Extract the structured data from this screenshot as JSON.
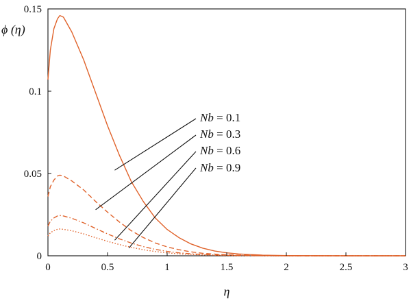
{
  "chart_data": {
    "type": "line",
    "title": "",
    "xlabel": "η",
    "ylabel": "ϕ (η)",
    "xlim": [
      0,
      3
    ],
    "ylim": [
      0,
      0.15
    ],
    "xticks": [
      0,
      0.5,
      1,
      1.5,
      2,
      2.5,
      3
    ],
    "xtick_labels": [
      "0",
      "0.5",
      "1",
      "1.5",
      "2",
      "2.5",
      "3"
    ],
    "yticks": [
      0,
      0.05,
      0.1,
      0.15
    ],
    "ytick_labels": [
      "0",
      "0.05",
      "0.1",
      "0.15"
    ],
    "grid": false,
    "line_color": "#e0622a",
    "series": [
      {
        "name": "Nb = 0.1",
        "dash": "solid",
        "points": [
          [
            0,
            0.107
          ],
          [
            0.02,
            0.125
          ],
          [
            0.05,
            0.138
          ],
          [
            0.08,
            0.144
          ],
          [
            0.1,
            0.146
          ],
          [
            0.13,
            0.145
          ],
          [
            0.2,
            0.136
          ],
          [
            0.3,
            0.119
          ],
          [
            0.4,
            0.099
          ],
          [
            0.5,
            0.079
          ],
          [
            0.6,
            0.061
          ],
          [
            0.7,
            0.045
          ],
          [
            0.8,
            0.033
          ],
          [
            0.9,
            0.023
          ],
          [
            1.0,
            0.016
          ],
          [
            1.1,
            0.011
          ],
          [
            1.2,
            0.0072
          ],
          [
            1.3,
            0.0046
          ],
          [
            1.4,
            0.0029
          ],
          [
            1.5,
            0.0018
          ],
          [
            1.6,
            0.0011
          ],
          [
            1.8,
            0.0004
          ],
          [
            2.0,
            0.0001
          ],
          [
            2.5,
            0
          ],
          [
            3.0,
            0
          ]
        ]
      },
      {
        "name": "Nb = 0.3",
        "dash": "dashed",
        "points": [
          [
            0,
            0.036
          ],
          [
            0.02,
            0.042
          ],
          [
            0.05,
            0.046
          ],
          [
            0.08,
            0.0485
          ],
          [
            0.1,
            0.049
          ],
          [
            0.13,
            0.0485
          ],
          [
            0.2,
            0.0455
          ],
          [
            0.3,
            0.04
          ],
          [
            0.4,
            0.033
          ],
          [
            0.5,
            0.0265
          ],
          [
            0.6,
            0.0205
          ],
          [
            0.7,
            0.0152
          ],
          [
            0.8,
            0.0111
          ],
          [
            0.9,
            0.0078
          ],
          [
            1.0,
            0.0054
          ],
          [
            1.1,
            0.0037
          ],
          [
            1.2,
            0.0024
          ],
          [
            1.3,
            0.0015
          ],
          [
            1.4,
            0.001
          ],
          [
            1.5,
            0.0006
          ],
          [
            1.6,
            0.0004
          ],
          [
            1.8,
            0.0001
          ],
          [
            2.0,
            0
          ],
          [
            2.5,
            0
          ],
          [
            3.0,
            0
          ]
        ]
      },
      {
        "name": "Nb = 0.6",
        "dash": "dashdot",
        "points": [
          [
            0,
            0.018
          ],
          [
            0.02,
            0.021
          ],
          [
            0.05,
            0.023
          ],
          [
            0.08,
            0.0242
          ],
          [
            0.1,
            0.0245
          ],
          [
            0.13,
            0.0242
          ],
          [
            0.2,
            0.0228
          ],
          [
            0.3,
            0.02
          ],
          [
            0.4,
            0.0166
          ],
          [
            0.5,
            0.0133
          ],
          [
            0.6,
            0.0103
          ],
          [
            0.7,
            0.0077
          ],
          [
            0.8,
            0.0056
          ],
          [
            0.9,
            0.0039
          ],
          [
            1.0,
            0.0027
          ],
          [
            1.1,
            0.0018
          ],
          [
            1.2,
            0.0012
          ],
          [
            1.3,
            0.0008
          ],
          [
            1.4,
            0.0005
          ],
          [
            1.5,
            0.0003
          ],
          [
            1.6,
            0.0002
          ],
          [
            1.8,
            0.0001
          ],
          [
            2.0,
            0
          ],
          [
            2.5,
            0
          ],
          [
            3.0,
            0
          ]
        ]
      },
      {
        "name": "Nb = 0.9",
        "dash": "dotted",
        "points": [
          [
            0,
            0.012
          ],
          [
            0.02,
            0.014
          ],
          [
            0.05,
            0.0153
          ],
          [
            0.08,
            0.0161
          ],
          [
            0.1,
            0.0163
          ],
          [
            0.13,
            0.0161
          ],
          [
            0.2,
            0.0152
          ],
          [
            0.3,
            0.0133
          ],
          [
            0.4,
            0.011
          ],
          [
            0.5,
            0.0088
          ],
          [
            0.6,
            0.0068
          ],
          [
            0.7,
            0.0051
          ],
          [
            0.8,
            0.0037
          ],
          [
            0.9,
            0.0026
          ],
          [
            1.0,
            0.0018
          ],
          [
            1.1,
            0.0012
          ],
          [
            1.2,
            0.0008
          ],
          [
            1.3,
            0.0005
          ],
          [
            1.4,
            0.0003
          ],
          [
            1.5,
            0.0002
          ],
          [
            1.6,
            0.0001
          ],
          [
            1.8,
            0
          ],
          [
            2.0,
            0
          ],
          [
            2.5,
            0
          ],
          [
            3.0,
            0
          ]
        ]
      }
    ],
    "annotations": [
      {
        "param": "Nb",
        "sep": " = ",
        "value": "0.1",
        "target": [
          0.56,
          0.052
        ]
      },
      {
        "param": "Nb",
        "sep": " = ",
        "value": "0.3",
        "target": [
          0.4,
          0.028
        ]
      },
      {
        "param": "Nb",
        "sep": " = ",
        "value": "0.6",
        "target": [
          0.56,
          0.0095
        ]
      },
      {
        "param": "Nb",
        "sep": " = ",
        "value": "0.9",
        "target": [
          0.68,
          0.0048
        ]
      }
    ]
  }
}
